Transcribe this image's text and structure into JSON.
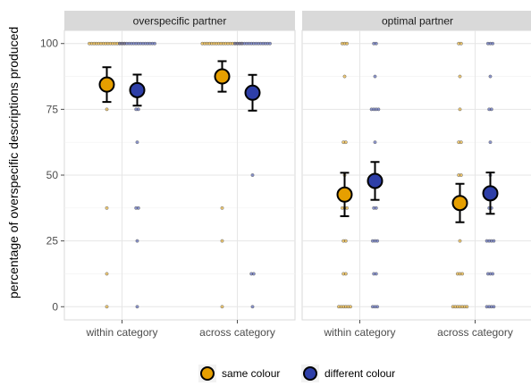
{
  "chart_data": {
    "type": "scatter",
    "ylabel": "percentage of overspecific descriptions produced",
    "ylim": [
      -5,
      105
    ],
    "yticks": [
      0,
      25,
      50,
      75,
      100
    ],
    "categories": [
      "within category",
      "across category"
    ],
    "grid": true,
    "legend_position": "bottom",
    "series": [
      {
        "name": "same colour",
        "color": "#E69F00"
      },
      {
        "name": "different colour",
        "color": "#2E3FA8"
      }
    ],
    "panels": [
      {
        "title": "overspecific partner",
        "summary": [
          {
            "category": "within category",
            "series": "same colour",
            "mean": 84.4,
            "low": 77.8,
            "high": 91.0
          },
          {
            "category": "within category",
            "series": "different colour",
            "mean": 82.3,
            "low": 76.4,
            "high": 88.2
          },
          {
            "category": "across category",
            "series": "same colour",
            "mean": 87.5,
            "low": 81.7,
            "high": 93.3
          },
          {
            "category": "across category",
            "series": "different colour",
            "mean": 81.3,
            "low": 74.5,
            "high": 88.1
          }
        ],
        "raw": [
          {
            "category": "within category",
            "series": "same colour",
            "values": [
              100,
              100,
              100,
              100,
              100,
              100,
              100,
              100,
              100,
              100,
              100,
              100,
              100,
              100,
              100,
              100,
              75,
              37.5,
              12.5,
              0
            ]
          },
          {
            "category": "within category",
            "series": "different colour",
            "values": [
              100,
              100,
              100,
              100,
              100,
              100,
              100,
              100,
              100,
              100,
              100,
              100,
              100,
              100,
              100,
              100,
              75,
              75,
              62.5,
              37.5,
              37.5,
              25,
              0
            ]
          },
          {
            "category": "across category",
            "series": "same colour",
            "values": [
              100,
              100,
              100,
              100,
              100,
              100,
              100,
              100,
              100,
              100,
              100,
              100,
              100,
              100,
              100,
              100,
              100,
              100,
              37.5,
              25,
              0
            ]
          },
          {
            "category": "across category",
            "series": "different colour",
            "values": [
              100,
              100,
              100,
              100,
              100,
              100,
              100,
              100,
              100,
              100,
              100,
              100,
              100,
              100,
              100,
              100,
              50,
              12.5,
              12.5,
              0
            ]
          }
        ]
      },
      {
        "title": "optimal partner",
        "summary": [
          {
            "category": "within category",
            "series": "same colour",
            "mean": 42.6,
            "low": 34.4,
            "high": 50.9
          },
          {
            "category": "within category",
            "series": "different colour",
            "mean": 47.8,
            "low": 40.6,
            "high": 55.0
          },
          {
            "category": "across category",
            "series": "same colour",
            "mean": 39.4,
            "low": 32.1,
            "high": 46.7
          },
          {
            "category": "across category",
            "series": "different colour",
            "mean": 43.1,
            "low": 35.3,
            "high": 51.0
          }
        ],
        "raw": [
          {
            "category": "within category",
            "series": "same colour",
            "values": [
              100,
              100,
              100,
              87.5,
              62.5,
              62.5,
              50,
              37.5,
              37.5,
              37.5,
              25,
              25,
              12.5,
              12.5,
              0,
              0,
              0,
              0,
              0,
              0
            ]
          },
          {
            "category": "within category",
            "series": "different colour",
            "values": [
              100,
              100,
              87.5,
              75,
              75,
              75,
              75,
              62.5,
              50,
              50,
              37.5,
              37.5,
              25,
              25,
              25,
              12.5,
              12.5,
              0,
              0,
              0
            ]
          },
          {
            "category": "across category",
            "series": "same colour",
            "values": [
              100,
              100,
              87.5,
              75,
              62.5,
              62.5,
              50,
              50,
              37.5,
              37.5,
              25,
              12.5,
              12.5,
              12.5,
              0,
              0,
              0,
              0,
              0,
              0,
              0
            ]
          },
          {
            "category": "across category",
            "series": "different colour",
            "values": [
              100,
              100,
              100,
              87.5,
              75,
              75,
              62.5,
              50,
              37.5,
              37.5,
              25,
              25,
              25,
              25,
              12.5,
              12.5,
              12.5,
              0,
              0,
              0,
              0
            ]
          }
        ]
      }
    ]
  }
}
